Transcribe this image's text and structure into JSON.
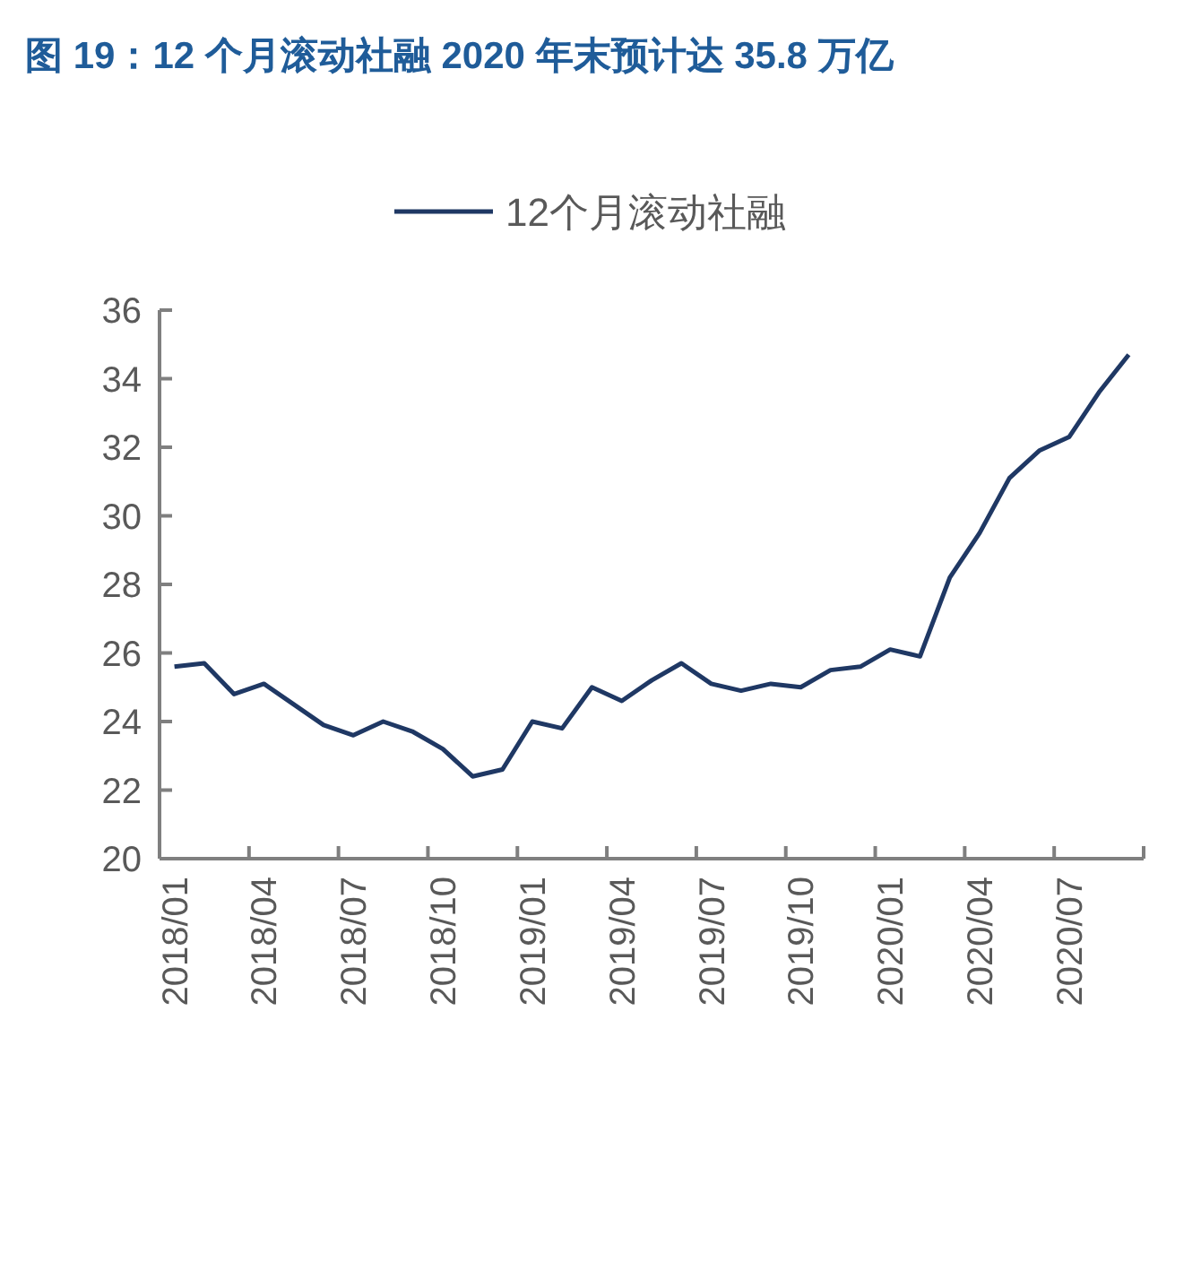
{
  "chart_data": {
    "type": "line",
    "title": "图 19：12 个月滚动社融 2020 年末预计达 35.8 万亿",
    "categories": [
      "2018/01",
      null,
      null,
      "2018/04",
      null,
      null,
      "2018/07",
      null,
      null,
      "2018/10",
      null,
      null,
      "2019/01",
      null,
      null,
      "2019/04",
      null,
      null,
      "2019/07",
      null,
      null,
      "2019/10",
      null,
      null,
      "2020/01",
      null,
      null,
      "2020/04",
      null,
      null,
      "2020/07",
      null,
      null
    ],
    "series": [
      {
        "name": "12个月滚动社融",
        "color": "#1f3864",
        "values": [
          25.6,
          25.7,
          24.8,
          25.1,
          24.5,
          23.9,
          23.6,
          24.0,
          23.7,
          23.2,
          22.4,
          22.6,
          24.0,
          23.8,
          25.0,
          24.6,
          25.2,
          25.7,
          25.1,
          24.9,
          25.1,
          25.0,
          25.5,
          25.6,
          26.1,
          25.9,
          28.2,
          29.5,
          31.1,
          31.9,
          32.3,
          33.6,
          34.7
        ]
      }
    ],
    "ylim": [
      20,
      36
    ],
    "yticks": [
      20,
      22,
      24,
      26,
      28,
      30,
      32,
      34,
      36
    ],
    "legend": "top"
  }
}
